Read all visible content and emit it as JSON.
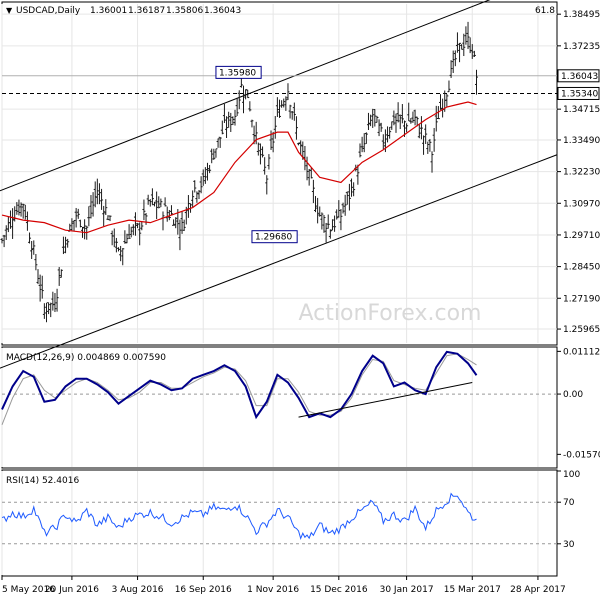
{
  "header": {
    "symbol_line": "USDCAD,Daily",
    "ohlc": [
      "1.36001",
      "1.36187",
      "1.35806",
      "1.36043"
    ]
  },
  "watermark": "ActionForex.com",
  "colors": {
    "price_bars": "#1a1a1a",
    "moving_average": "#d40000",
    "macd_line": "#00008b",
    "macd_signal": "#999999",
    "rsi_line": "#1e5aff",
    "channel_lines": "#000000",
    "grid": "#e6e6e6",
    "border": "#000000"
  },
  "chart_data": [
    {
      "type": "ohlc",
      "title": "USDCAD,Daily",
      "ylim": [
        1.2541,
        1.389
      ],
      "y_ticks": [
        "1.38495",
        "1.37235",
        "1.34715",
        "1.33490",
        "1.32230",
        "1.30970",
        "1.29710",
        "1.28450",
        "1.27190",
        "1.25965"
      ],
      "price_tags": [
        {
          "label": "1.36043",
          "value": 1.36043,
          "style": "box"
        },
        {
          "label": "1.35340",
          "value": 1.3534,
          "style": "box"
        }
      ],
      "annotations": [
        {
          "label": "1.35980",
          "value": 1.3598
        },
        {
          "label": "1.29680",
          "value": 1.2968
        },
        {
          "label": "61.8"
        }
      ],
      "lines": {
        "horizontal_dashed": 1.3534,
        "horizontal_solid": 1.36043,
        "channel_upper": [
          [
            0,
            1.315
          ],
          [
            113.5,
            1.3598
          ],
          [
            219,
            1.387
          ]
        ],
        "channel_lower": [
          [
            30,
            1.2541
          ],
          [
            140,
            1.2968
          ],
          [
            235,
            1.3203
          ]
        ]
      },
      "series": [
        {
          "name": "Price",
          "x": [
            0,
            5,
            10,
            15,
            20,
            25,
            30,
            35,
            40,
            45,
            50,
            55,
            60,
            65,
            70,
            75,
            80,
            85,
            90,
            95,
            100,
            105,
            110,
            113,
            116,
            120,
            125,
            130,
            135,
            140,
            145,
            150,
            155,
            160,
            165,
            170,
            175,
            180,
            185,
            190,
            195,
            200,
            203,
            206,
            210,
            215,
            219,
            222,
            224
          ],
          "values": [
            1.295,
            1.305,
            1.31,
            1.29,
            1.268,
            1.27,
            1.295,
            1.305,
            1.3,
            1.315,
            1.305,
            1.289,
            1.298,
            1.3,
            1.31,
            1.308,
            1.305,
            1.3,
            1.315,
            1.318,
            1.33,
            1.34,
            1.345,
            1.356,
            1.353,
            1.335,
            1.32,
            1.345,
            1.355,
            1.335,
            1.32,
            1.305,
            1.3,
            1.305,
            1.315,
            1.33,
            1.345,
            1.335,
            1.343,
            1.342,
            1.343,
            1.335,
            1.33,
            1.345,
            1.355,
            1.37,
            1.375,
            1.372,
            1.3604
          ]
        },
        {
          "name": "MA",
          "x": [
            0,
            10,
            20,
            30,
            40,
            50,
            60,
            70,
            80,
            90,
            100,
            110,
            120,
            130,
            135,
            140,
            150,
            160,
            170,
            180,
            190,
            200,
            210,
            215,
            220,
            224
          ],
          "values": [
            1.305,
            1.303,
            1.302,
            1.299,
            1.298,
            1.301,
            1.303,
            1.302,
            1.305,
            1.308,
            1.314,
            1.326,
            1.335,
            1.338,
            1.338,
            1.33,
            1.32,
            1.318,
            1.326,
            1.331,
            1.337,
            1.343,
            1.348,
            1.349,
            1.35,
            1.349
          ]
        }
      ]
    },
    {
      "type": "line",
      "title": "MACD(12,26,9) 0.004869 0.007590",
      "ylim": [
        -0.019,
        0.012
      ],
      "y_ticks": [
        "0.011125",
        "0.00",
        "-0.015703"
      ],
      "support_line": [
        [
          140,
          -0.006
        ],
        [
          222,
          0.003
        ]
      ],
      "series": [
        {
          "name": "MACD",
          "x": [
            0,
            5,
            10,
            15,
            20,
            25,
            30,
            35,
            40,
            45,
            50,
            55,
            60,
            65,
            70,
            75,
            80,
            85,
            90,
            95,
            100,
            105,
            110,
            115,
            120,
            125,
            130,
            135,
            140,
            145,
            150,
            155,
            160,
            165,
            170,
            175,
            180,
            185,
            190,
            195,
            200,
            205,
            210,
            215,
            220,
            224
          ],
          "values": [
            -0.004,
            0.002,
            0.006,
            0.0045,
            -0.002,
            -0.0015,
            0.002,
            0.004,
            0.004,
            0.0025,
            0.0005,
            -0.0025,
            -0.0005,
            0.0015,
            0.0035,
            0.0025,
            0.001,
            0.0015,
            0.004,
            0.005,
            0.006,
            0.0075,
            0.006,
            0.002,
            -0.006,
            -0.002,
            0.005,
            0.003,
            -0.001,
            -0.006,
            -0.005,
            -0.006,
            -0.004,
            0.0,
            0.006,
            0.01,
            0.008,
            0.002,
            0.003,
            0.001,
            0.0,
            0.007,
            0.011,
            0.0105,
            0.008,
            0.0049
          ]
        },
        {
          "name": "Signal",
          "x": [
            0,
            5,
            10,
            15,
            20,
            25,
            30,
            35,
            40,
            45,
            50,
            55,
            60,
            65,
            70,
            75,
            80,
            85,
            90,
            95,
            100,
            105,
            110,
            115,
            120,
            125,
            130,
            135,
            140,
            145,
            150,
            155,
            160,
            165,
            170,
            175,
            180,
            185,
            190,
            195,
            200,
            205,
            210,
            215,
            220,
            224
          ],
          "values": [
            -0.008,
            -0.001,
            0.004,
            0.005,
            0.001,
            -0.001,
            0.001,
            0.003,
            0.004,
            0.003,
            0.001,
            -0.0015,
            -0.001,
            0.0005,
            0.003,
            0.003,
            0.0015,
            0.0015,
            0.003,
            0.0045,
            0.0055,
            0.007,
            0.0065,
            0.0035,
            -0.003,
            -0.003,
            0.004,
            0.004,
            0.0005,
            -0.0045,
            -0.0055,
            -0.0055,
            -0.0045,
            -0.001,
            0.005,
            0.009,
            0.0085,
            0.0035,
            0.0025,
            0.0015,
            0.001,
            0.0055,
            0.01,
            0.0105,
            0.009,
            0.0076
          ]
        }
      ]
    },
    {
      "type": "line",
      "title": "RSI(14) 52.4016",
      "ylim": [
        0,
        100
      ],
      "y_ticks": [
        "100",
        "70",
        "30"
      ],
      "reference_lines": [
        70,
        30
      ],
      "series": [
        {
          "name": "RSI",
          "x": [
            0,
            5,
            10,
            15,
            20,
            25,
            30,
            35,
            40,
            45,
            50,
            55,
            60,
            65,
            70,
            75,
            80,
            85,
            90,
            95,
            100,
            105,
            110,
            115,
            120,
            125,
            130,
            135,
            140,
            145,
            150,
            155,
            160,
            165,
            170,
            175,
            180,
            185,
            190,
            195,
            200,
            205,
            210,
            215,
            220,
            224
          ],
          "values": [
            52,
            60,
            56,
            64,
            40,
            45,
            58,
            50,
            62,
            48,
            55,
            45,
            55,
            58,
            60,
            56,
            50,
            55,
            60,
            58,
            65,
            62,
            68,
            58,
            42,
            50,
            62,
            55,
            40,
            35,
            48,
            40,
            45,
            55,
            62,
            70,
            52,
            58,
            52,
            64,
            45,
            62,
            72,
            78,
            60,
            52
          ]
        }
      ]
    }
  ],
  "x_axis": {
    "ticks": [
      {
        "label": "5 May 2016",
        "x": 0
      },
      {
        "label": "20 Jun 2016",
        "x": 33
      },
      {
        "label": "3 Aug 2016",
        "x": 64
      },
      {
        "label": "16 Sep 2016",
        "x": 95
      },
      {
        "label": "1 Nov 2016",
        "x": 128
      },
      {
        "label": "15 Dec 2016",
        "x": 159
      },
      {
        "label": "30 Jan 2017",
        "x": 191
      },
      {
        "label": "15 Mar 2017",
        "x": 222
      },
      {
        "label": "28 Apr 2017",
        "x": 253
      }
    ]
  }
}
